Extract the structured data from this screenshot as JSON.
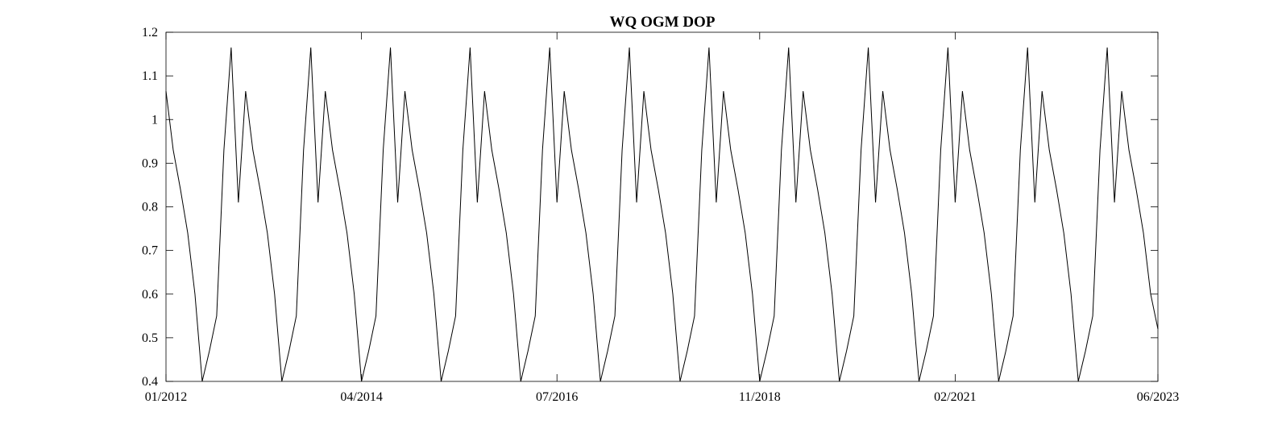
{
  "chart_data": {
    "type": "line",
    "title": "WQ OGM DOP",
    "xlabel": "",
    "ylabel": "",
    "xlim": [
      "2012-01",
      "2023-06"
    ],
    "ylim": [
      0.4,
      1.2
    ],
    "grid": false,
    "x_ticks": [
      "01/2012",
      "04/2014",
      "07/2016",
      "11/2018",
      "02/2021",
      "06/2023"
    ],
    "y_ticks": [
      "0.4",
      "0.5",
      "0.6",
      "0.7",
      "0.8",
      "0.9",
      "1",
      "1.1",
      "1.2"
    ],
    "line_color": "#000000",
    "series": [
      {
        "x": [
          "2012-01",
          "2012-02",
          "2012-03",
          "2012-04",
          "2012-05",
          "2012-06",
          "2012-07",
          "2012-08",
          "2012-09",
          "2012-10",
          "2012-11",
          "2012-12",
          "2013-01",
          "2013-02",
          "2013-03",
          "2013-04",
          "2013-05",
          "2013-06",
          "2013-07",
          "2013-08",
          "2013-09",
          "2013-10",
          "2013-11",
          "2013-12",
          "2014-01",
          "2014-02",
          "2014-03",
          "2014-04",
          "2014-05",
          "2014-06",
          "2014-07",
          "2014-08",
          "2014-09",
          "2014-10",
          "2014-11",
          "2014-12",
          "2015-01",
          "2015-02",
          "2015-03",
          "2015-04",
          "2015-05",
          "2015-06",
          "2015-07",
          "2015-08",
          "2015-09",
          "2015-10",
          "2015-11",
          "2015-12",
          "2016-01",
          "2016-02",
          "2016-03",
          "2016-04",
          "2016-05",
          "2016-06",
          "2016-07",
          "2016-08",
          "2016-09",
          "2016-10",
          "2016-11",
          "2016-12",
          "2017-01",
          "2017-02",
          "2017-03",
          "2017-04",
          "2017-05",
          "2017-06",
          "2017-07",
          "2017-08",
          "2017-09",
          "2017-10",
          "2017-11",
          "2017-12",
          "2018-01",
          "2018-02",
          "2018-03",
          "2018-04",
          "2018-05",
          "2018-06",
          "2018-07",
          "2018-08",
          "2018-09",
          "2018-10",
          "2018-11",
          "2018-12",
          "2019-01",
          "2019-02",
          "2019-03",
          "2019-04",
          "2019-05",
          "2019-06",
          "2019-07",
          "2019-08",
          "2019-09",
          "2019-10",
          "2019-11",
          "2019-12",
          "2020-01",
          "2020-02",
          "2020-03",
          "2020-04",
          "2020-05",
          "2020-06",
          "2020-07",
          "2020-08",
          "2020-09",
          "2020-10",
          "2020-11",
          "2020-12",
          "2021-01",
          "2021-02",
          "2021-03",
          "2021-04",
          "2021-05",
          "2021-06",
          "2021-07",
          "2021-08",
          "2021-09",
          "2021-10",
          "2021-11",
          "2021-12",
          "2022-01",
          "2022-02",
          "2022-03",
          "2022-04",
          "2022-05",
          "2022-06",
          "2022-07",
          "2022-08",
          "2022-09",
          "2022-10",
          "2022-11",
          "2022-12",
          "2023-01",
          "2023-02",
          "2023-03",
          "2023-04",
          "2023-05",
          "2023-06"
        ],
        "values": [
          1.065,
          0.93,
          0.84,
          0.74,
          0.6,
          0.4,
          0.47,
          0.55,
          0.93,
          1.165,
          0.81,
          1.065,
          0.93,
          0.84,
          0.74,
          0.6,
          0.4,
          0.47,
          0.55,
          0.93,
          1.165,
          0.81,
          1.065,
          0.93,
          0.84,
          0.74,
          0.6,
          0.4,
          0.47,
          0.55,
          0.93,
          1.165,
          0.81,
          1.065,
          0.93,
          0.84,
          0.74,
          0.6,
          0.4,
          0.47,
          0.55,
          0.93,
          1.165,
          0.81,
          1.065,
          0.93,
          0.84,
          0.74,
          0.6,
          0.4,
          0.47,
          0.55,
          0.93,
          1.165,
          0.81,
          1.065,
          0.93,
          0.84,
          0.74,
          0.6,
          0.4,
          0.47,
          0.55,
          0.93,
          1.165,
          0.81,
          1.065,
          0.93,
          0.84,
          0.74,
          0.6,
          0.4,
          0.47,
          0.55,
          0.93,
          1.165,
          0.81,
          1.065,
          0.93,
          0.84,
          0.74,
          0.6,
          0.4,
          0.47,
          0.55,
          0.93,
          1.165,
          0.81,
          1.065,
          0.93,
          0.84,
          0.74,
          0.6,
          0.4,
          0.47,
          0.55,
          0.93,
          1.165,
          0.81,
          1.065,
          0.93,
          0.84,
          0.74,
          0.6,
          0.4,
          0.47,
          0.55,
          0.93,
          1.165,
          0.81,
          1.065,
          0.93,
          0.84,
          0.74,
          0.6,
          0.4,
          0.47,
          0.55,
          0.93,
          1.165,
          0.81,
          1.065,
          0.93,
          0.84,
          0.74,
          0.6,
          0.4,
          0.47,
          0.55,
          0.93,
          1.165,
          0.81,
          1.065,
          0.93,
          0.84,
          0.74,
          0.6,
          0.52
        ]
      }
    ]
  }
}
